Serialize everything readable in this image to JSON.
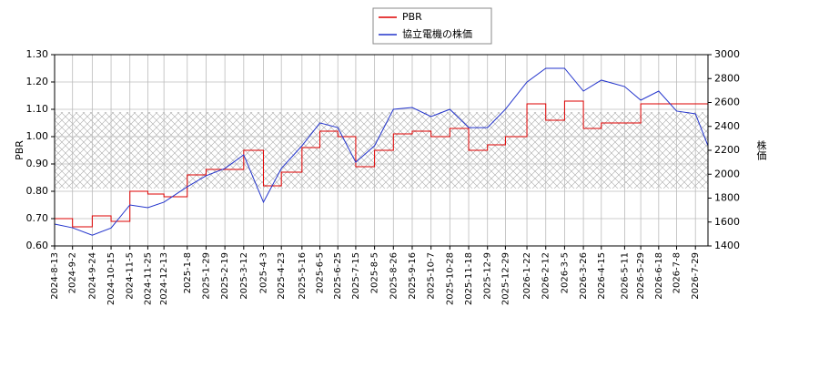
{
  "chart_data": {
    "type": "line",
    "x": [
      "2024-8-13",
      "2024-9-2",
      "2024-9-24",
      "2024-10-15",
      "2024-11-5",
      "2024-11-25",
      "2024-12-13",
      "2025-1-8",
      "2025-1-29",
      "2025-2-19",
      "2025-3-12",
      "2025-4-3",
      "2025-4-23",
      "2025-5-16",
      "2025-6-5",
      "2025-6-25",
      "2025-7-15",
      "2025-8-5",
      "2025-8-26",
      "2025-9-16",
      "2025-10-7",
      "2025-10-28",
      "2025-11-18",
      "2025-12-9",
      "2025-12-29",
      "2026-1-22",
      "2026-2-12",
      "2026-3-5",
      "2026-3-26",
      "2026-4-15",
      "2026-5-11",
      "2026-5-29",
      "2026-6-18",
      "2026-7-8",
      "2026-7-29",
      "2026-8-12"
    ],
    "series": [
      {
        "name": "PBR",
        "color": "#dd0000",
        "axis": "y",
        "step": true,
        "values": [
          0.7,
          0.67,
          0.71,
          0.69,
          0.8,
          0.79,
          0.78,
          0.86,
          0.88,
          0.88,
          0.95,
          0.82,
          0.87,
          0.96,
          1.02,
          1.0,
          0.89,
          0.95,
          1.01,
          1.02,
          1.0,
          1.03,
          0.95,
          0.97,
          1.0,
          1.12,
          1.06,
          1.13,
          1.03,
          1.05,
          1.05,
          1.12,
          1.12,
          1.12,
          1.12,
          0.9
        ]
      },
      {
        "name": "協立電機の株価",
        "color": "#2233cc",
        "axis": "y2",
        "values": [
          1583,
          1552,
          1490,
          1550,
          1743,
          1720,
          1766,
          1895,
          1987,
          2048,
          2162,
          1766,
          2048,
          2238,
          2429,
          2390,
          2100,
          2238,
          2543,
          2558,
          2482,
          2543,
          2390,
          2390,
          2543,
          2771,
          2886,
          2886,
          2695,
          2787,
          2733,
          2619,
          2695,
          2528,
          2505,
          2238
        ]
      }
    ],
    "xlim": [
      "2024-8-13",
      "2026-8-12"
    ],
    "xticks": [
      "2024-8-13",
      "2024-9-2",
      "2024-9-24",
      "2024-10-15",
      "2024-11-5",
      "2024-11-25",
      "2024-12-13",
      "2025-1-8",
      "2025-1-29",
      "2025-2-19",
      "2025-3-12",
      "2025-4-3",
      "2025-4-23",
      "2025-5-16",
      "2025-6-5",
      "2025-6-25",
      "2025-7-15",
      "2025-8-5",
      "2025-8-26",
      "2025-9-16",
      "2025-10-7",
      "2025-10-28",
      "2025-11-18",
      "2025-12-9",
      "2025-12-29",
      "2026-1-22",
      "2026-2-12",
      "2026-3-5",
      "2026-3-26",
      "2026-4-15",
      "2026-5-11",
      "2026-5-29",
      "2026-6-18",
      "2026-7-8",
      "2026-7-29"
    ],
    "ylabel": "PBR",
    "y2label": "株価",
    "ylim": [
      0.6,
      1.3
    ],
    "yticks": [
      {
        "value": 0.6,
        "label": "0.60"
      },
      {
        "value": 0.7,
        "label": "0.70"
      },
      {
        "value": 0.8,
        "label": "0.80"
      },
      {
        "value": 0.9,
        "label": "0.90"
      },
      {
        "value": 1.0,
        "label": "1.00"
      },
      {
        "value": 1.1,
        "label": "1.10"
      },
      {
        "value": 1.2,
        "label": "1.20"
      },
      {
        "value": 1.3,
        "label": "1.30"
      }
    ],
    "y2lim": [
      1400,
      3000
    ],
    "y2ticks": [
      1400,
      1600,
      1800,
      2000,
      2200,
      2400,
      2600,
      2800,
      3000
    ],
    "shaded_range": [
      0.81,
      1.09
    ],
    "grid": true,
    "legend": "top"
  }
}
